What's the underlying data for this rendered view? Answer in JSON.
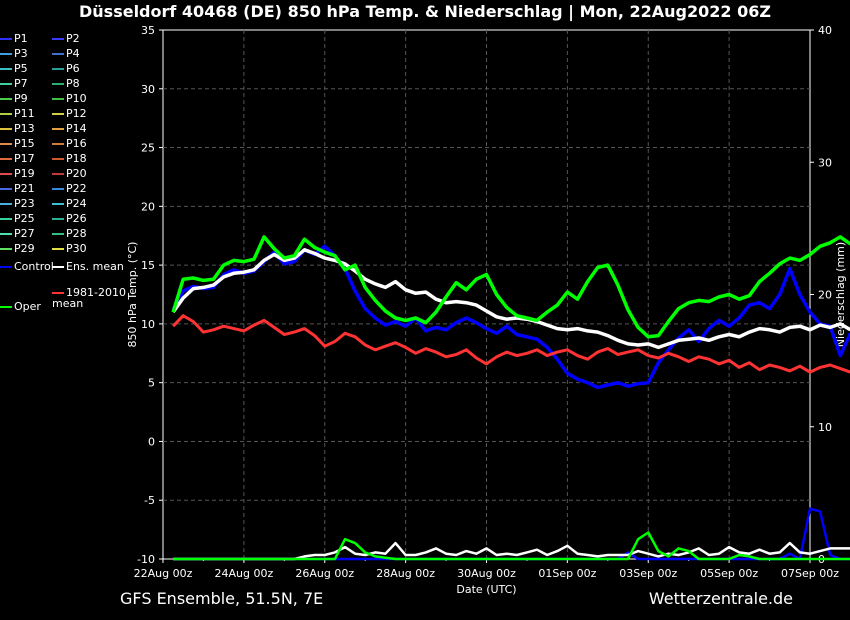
{
  "title": "Düsseldorf 40468 (DE)  850 hPa Temp. & Niederschlag | Mon, 22Aug2022 06Z",
  "footer": {
    "left": "GFS Ensemble, 51.5N, 7E",
    "right": "Wetterzentrale.de"
  },
  "chart_data": {
    "type": "line",
    "xlabel": "Date (UTC)",
    "ylabel": "850 hPa Temp. (°C)",
    "y2label": "Niederschlag (mm)",
    "ylim": [
      -10,
      35
    ],
    "y2lim": [
      0,
      40
    ],
    "yticks": [
      -10,
      -5,
      0,
      5,
      10,
      15,
      20,
      25,
      30,
      35
    ],
    "y2ticks": [
      0,
      10,
      20,
      30,
      40
    ],
    "grid": true,
    "x_tick_labels": [
      "22Aug 00z",
      "24Aug 00z",
      "26Aug 00z",
      "28Aug 00z",
      "30Aug 00z",
      "01Sep 00z",
      "03Sep 00z",
      "05Sep 00z",
      "07Sep 00z"
    ],
    "x_start": "2022-08-22T06:00Z",
    "x_step_hours": 6,
    "series": [
      {
        "name": "Control",
        "color": "#0000ff",
        "width": 3.5,
        "values": [
          11.2,
          12.8,
          13.2,
          13.0,
          13.1,
          14.2,
          14.6,
          14.3,
          14.5,
          15.3,
          16.1,
          15.1,
          15.3,
          16.3,
          15.9,
          16.6,
          15.8,
          14.7,
          12.8,
          11.3,
          10.5,
          9.9,
          10.2,
          9.8,
          10.5,
          9.4,
          9.7,
          9.5,
          10.1,
          10.5,
          10.1,
          9.6,
          9.2,
          9.8,
          9.1,
          8.9,
          8.7,
          8.0,
          7.0,
          5.8,
          5.3,
          5.0,
          4.6,
          4.8,
          5.0,
          4.7,
          4.9,
          5.0,
          6.7,
          7.8,
          8.8,
          9.5,
          8.5,
          9.6,
          10.3,
          9.8,
          10.5,
          11.6,
          11.8,
          11.3,
          12.5,
          14.7,
          12.5,
          11.0,
          10.0,
          9.8,
          7.3,
          9.2
        ]
      },
      {
        "name": "Ens. mean",
        "color": "#ffffff",
        "width": 3.5,
        "values": [
          11.0,
          12.2,
          13.0,
          13.1,
          13.3,
          14.0,
          14.3,
          14.4,
          14.6,
          15.4,
          15.9,
          15.4,
          15.6,
          16.3,
          16.0,
          15.6,
          15.4,
          15.1,
          14.5,
          13.8,
          13.4,
          13.1,
          13.6,
          12.9,
          12.6,
          12.7,
          12.1,
          11.8,
          11.9,
          11.8,
          11.6,
          11.1,
          10.6,
          10.4,
          10.5,
          10.4,
          10.2,
          9.9,
          9.6,
          9.5,
          9.6,
          9.4,
          9.3,
          9.0,
          8.6,
          8.3,
          8.2,
          8.3,
          8.0,
          8.3,
          8.6,
          8.7,
          8.8,
          8.6,
          8.9,
          9.1,
          8.9,
          9.3,
          9.6,
          9.5,
          9.3,
          9.7,
          9.8,
          9.5,
          9.9,
          9.7,
          10.0,
          9.5
        ]
      },
      {
        "name": "Oper",
        "color": "#00ff00",
        "width": 3.5,
        "values": [
          11.0,
          13.8,
          13.9,
          13.7,
          13.8,
          15.0,
          15.4,
          15.3,
          15.5,
          17.4,
          16.4,
          15.6,
          15.8,
          17.2,
          16.5,
          16.1,
          15.8,
          14.6,
          15.0,
          13.1,
          12.0,
          11.1,
          10.5,
          10.3,
          10.5,
          10.1,
          11.0,
          12.3,
          13.5,
          12.9,
          13.8,
          14.2,
          12.5,
          11.4,
          10.7,
          10.5,
          10.3,
          11.0,
          11.6,
          12.7,
          12.1,
          13.6,
          14.8,
          15.0,
          13.3,
          11.2,
          9.7,
          8.9,
          9.0,
          10.2,
          11.3,
          11.8,
          12.0,
          11.9,
          12.3,
          12.5,
          12.1,
          12.4,
          13.6,
          14.3,
          15.1,
          15.6,
          15.4,
          15.9,
          16.6,
          16.9,
          17.4,
          16.8
        ]
      },
      {
        "name": "1981-2010 mean",
        "color": "#ff3333",
        "width": 3,
        "values": [
          9.8,
          10.7,
          10.2,
          9.3,
          9.5,
          9.8,
          9.6,
          9.4,
          9.9,
          10.3,
          9.7,
          9.1,
          9.3,
          9.6,
          9.0,
          8.1,
          8.5,
          9.2,
          8.9,
          8.2,
          7.8,
          8.1,
          8.4,
          8.0,
          7.5,
          7.9,
          7.6,
          7.2,
          7.4,
          7.8,
          7.1,
          6.6,
          7.2,
          7.6,
          7.3,
          7.5,
          7.8,
          7.3,
          7.6,
          7.8,
          7.3,
          7.0,
          7.6,
          7.9,
          7.4,
          7.6,
          7.8,
          7.3,
          7.1,
          7.5,
          7.2,
          6.8,
          7.2,
          7.0,
          6.6,
          6.9,
          6.3,
          6.7,
          6.1,
          6.5,
          6.3,
          6.0,
          6.4,
          5.9,
          6.3,
          6.5,
          6.2,
          5.9
        ]
      }
    ],
    "precip_series": [
      {
        "name": "Control",
        "color": "#0000ff",
        "values": [
          0,
          0,
          0,
          0,
          0,
          0,
          0,
          0,
          0,
          0,
          0,
          0,
          0,
          0,
          0,
          0,
          0,
          0,
          0,
          0,
          0,
          0,
          0,
          0,
          0,
          0,
          0,
          0,
          0,
          0,
          0,
          0,
          0,
          0,
          0,
          0,
          0,
          0,
          0,
          0,
          0,
          0,
          0,
          0,
          0,
          0.5,
          0,
          0,
          0,
          0,
          0,
          0,
          0,
          0,
          0,
          0,
          0,
          0,
          0,
          0,
          0,
          0.4,
          0,
          3.8,
          3.6,
          0.3,
          0,
          0
        ]
      },
      {
        "name": "Ens. mean",
        "color": "#ffffff",
        "values": [
          0,
          0,
          0,
          0,
          0,
          0,
          0,
          0,
          0,
          0,
          0,
          0,
          0,
          0.2,
          0.3,
          0.3,
          0.5,
          0.9,
          0.4,
          0.3,
          0.5,
          0.4,
          1.2,
          0.3,
          0.3,
          0.5,
          0.8,
          0.4,
          0.3,
          0.6,
          0.4,
          0.8,
          0.3,
          0.4,
          0.3,
          0.5,
          0.7,
          0.3,
          0.6,
          1.0,
          0.4,
          0.3,
          0.2,
          0.3,
          0.3,
          0.3,
          0.6,
          0.4,
          0.2,
          0.4,
          0.3,
          0.5,
          0.8,
          0.3,
          0.4,
          0.9,
          0.5,
          0.4,
          0.7,
          0.4,
          0.5,
          1.2,
          0.5,
          0.4,
          0.6,
          0.8,
          0.8,
          0.8
        ]
      },
      {
        "name": "Oper",
        "color": "#00ff00",
        "values": [
          0,
          0,
          0,
          0,
          0,
          0,
          0,
          0,
          0,
          0,
          0,
          0,
          0,
          0,
          0,
          0,
          0,
          1.5,
          1.2,
          0.5,
          0.2,
          0.1,
          0,
          0,
          0,
          0,
          0,
          0,
          0,
          0,
          0,
          0,
          0,
          0,
          0,
          0,
          0,
          0,
          0,
          0,
          0,
          0,
          0,
          0,
          0,
          0,
          1.5,
          2.0,
          0.6,
          0.2,
          0.8,
          0.6,
          0,
          0,
          0,
          0,
          0.3,
          0.2,
          0,
          0,
          0,
          0,
          0,
          0,
          0,
          0,
          0,
          0
        ]
      }
    ],
    "legend": {
      "members": [
        "P1",
        "P2",
        "P3",
        "P4",
        "P5",
        "P6",
        "P7",
        "P8",
        "P9",
        "P10",
        "P11",
        "P12",
        "P13",
        "P14",
        "P15",
        "P16",
        "P17",
        "P18",
        "P19",
        "P20",
        "P21",
        "P22",
        "P23",
        "P24",
        "P25",
        "P26",
        "P27",
        "P28",
        "P29",
        "P30"
      ],
      "member_colors": [
        "#2e2eff",
        "#3a3aff",
        "#3fa0e0",
        "#3f6fd0",
        "#3fc0c0",
        "#2aa09a",
        "#3fd0a0",
        "#2ab070",
        "#4ad04a",
        "#40c040",
        "#b0d040",
        "#d0d040",
        "#e0c040",
        "#e0a040",
        "#e08a50",
        "#d07a40",
        "#e06a40",
        "#d05a30",
        "#e04a4a",
        "#c03a3a",
        "#4a6ae0",
        "#3a8ae0",
        "#4ab0e0",
        "#3ac0d0",
        "#3ad0a0",
        "#2ab090",
        "#4ae0b0",
        "#30c080",
        "#60e060",
        "#e0e040"
      ],
      "control": "Control",
      "ens_mean": "Ens. mean",
      "oper": "Oper",
      "climate_mean": "1981-2010\nmean"
    }
  }
}
